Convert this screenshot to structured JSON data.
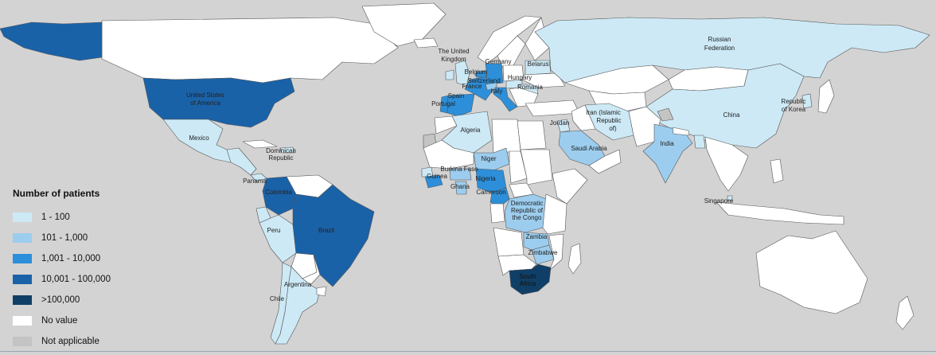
{
  "legend": {
    "title": "Number of patients",
    "items": [
      {
        "key": "c1",
        "label": "1 - 100",
        "color": "#cde9f6"
      },
      {
        "key": "c2",
        "label": "101 - 1,000",
        "color": "#9ccdee"
      },
      {
        "key": "c3",
        "label": "1,001 - 10,000",
        "color": "#2d8fd9"
      },
      {
        "key": "c4",
        "label": "10,001 - 100,000",
        "color": "#1a62a8"
      },
      {
        "key": "c5",
        "label": ">100,000",
        "color": "#0f3f66"
      },
      {
        "key": "none",
        "label": "No value",
        "color": "#ffffff"
      },
      {
        "key": "na",
        "label": "Not applicable",
        "color": "#c4c4c4"
      }
    ]
  },
  "colors": {
    "ocean": "#d3d3d3",
    "border": "#555555"
  },
  "countries": [
    {
      "name": "Canada",
      "class": "none"
    },
    {
      "name": "Greenland",
      "class": "none"
    },
    {
      "name": "Alaska",
      "class": "c4"
    },
    {
      "name": "United States of America",
      "class": "c4",
      "label": "United States of America"
    },
    {
      "name": "Mexico",
      "class": "c1",
      "label": "Mexico"
    },
    {
      "name": "Central America",
      "class": "c1"
    },
    {
      "name": "Cuba",
      "class": "none"
    },
    {
      "name": "Dominican Republic",
      "class": "c1",
      "label": "Dominican Republic"
    },
    {
      "name": "Panama",
      "class": "c1",
      "label": "Panama"
    },
    {
      "name": "Venezuela",
      "class": "none"
    },
    {
      "name": "Colombia",
      "class": "c4",
      "label": "Colombia"
    },
    {
      "name": "Ecuador",
      "class": "c1"
    },
    {
      "name": "Peru",
      "class": "c1",
      "label": "Peru"
    },
    {
      "name": "Brazil",
      "class": "c4",
      "label": "Brazil"
    },
    {
      "name": "Bolivia",
      "class": "none"
    },
    {
      "name": "Paraguay",
      "class": "none"
    },
    {
      "name": "Chile",
      "class": "c1",
      "label": "Chile"
    },
    {
      "name": "Argentina",
      "class": "c1",
      "label": "Argentina"
    },
    {
      "name": "Uruguay",
      "class": "none"
    },
    {
      "name": "Iceland",
      "class": "none"
    },
    {
      "name": "The United Kingdom",
      "class": "c1",
      "label": "The United Kingdom"
    },
    {
      "name": "Ireland",
      "class": "c1"
    },
    {
      "name": "Norway",
      "class": "none"
    },
    {
      "name": "Sweden",
      "class": "none"
    },
    {
      "name": "Finland",
      "class": "none"
    },
    {
      "name": "Portugal",
      "class": "c3",
      "label": "Portugal"
    },
    {
      "name": "Spain",
      "class": "c3",
      "label": "Spain"
    },
    {
      "name": "France",
      "class": "c3",
      "label": "France"
    },
    {
      "name": "Belgium",
      "class": "c3",
      "label": "Belgium"
    },
    {
      "name": "Germany",
      "class": "c3",
      "label": "Germany"
    },
    {
      "name": "Switzerland",
      "class": "c2",
      "label": "Switzerland"
    },
    {
      "name": "Italy",
      "class": "c3",
      "label": "Italy"
    },
    {
      "name": "Poland",
      "class": "none"
    },
    {
      "name": "Hungary",
      "class": "c1",
      "label": "Hungary"
    },
    {
      "name": "Romania",
      "class": "c1",
      "label": "Romania"
    },
    {
      "name": "Belarus",
      "class": "c1",
      "label": "Belarus"
    },
    {
      "name": "Ukraine",
      "class": "none"
    },
    {
      "name": "Balkans",
      "class": "none"
    },
    {
      "name": "Turkey",
      "class": "none"
    },
    {
      "name": "Russian Federation",
      "class": "c1",
      "label": "Russian Federation"
    },
    {
      "name": "Kazakhstan",
      "class": "none"
    },
    {
      "name": "Central Asia",
      "class": "none"
    },
    {
      "name": "Mongolia",
      "class": "none"
    },
    {
      "name": "China",
      "class": "c1",
      "label": "China"
    },
    {
      "name": "Republic of Korea",
      "class": "c1",
      "label": "Republic of Korea"
    },
    {
      "name": "Japan",
      "class": "none"
    },
    {
      "name": "Iran (Islamic Republic of)",
      "class": "c1",
      "label": "Iran (Islamic Republic of)"
    },
    {
      "name": "Iraq",
      "class": "none"
    },
    {
      "name": "Jordan",
      "class": "c1",
      "label": "Jordan"
    },
    {
      "name": "Saudi Arabia",
      "class": "c2",
      "label": "Saudi Arabia"
    },
    {
      "name": "Yemen Oman",
      "class": "none"
    },
    {
      "name": "Afghanistan Pakistan",
      "class": "none"
    },
    {
      "name": "Kashmir",
      "class": "na"
    },
    {
      "name": "India",
      "class": "c2",
      "label": "India"
    },
    {
      "name": "Nepal",
      "class": "none"
    },
    {
      "name": "Bangladesh",
      "class": "c1"
    },
    {
      "name": "Southeast Asia",
      "class": "none"
    },
    {
      "name": "Singapore",
      "class": "c1",
      "label": "Singapore"
    },
    {
      "name": "Indonesia",
      "class": "none"
    },
    {
      "name": "Philippines",
      "class": "none"
    },
    {
      "name": "Australia",
      "class": "none"
    },
    {
      "name": "New Zealand",
      "class": "none"
    },
    {
      "name": "Western Sahara",
      "class": "na"
    },
    {
      "name": "Morocco",
      "class": "none"
    },
    {
      "name": "Algeria",
      "class": "c1",
      "label": "Algeria"
    },
    {
      "name": "Libya",
      "class": "none"
    },
    {
      "name": "Egypt",
      "class": "none"
    },
    {
      "name": "Mauritania Mali",
      "class": "none"
    },
    {
      "name": "Niger",
      "class": "c2",
      "label": "Niger"
    },
    {
      "name": "Chad",
      "class": "none"
    },
    {
      "name": "Sudan",
      "class": "none"
    },
    {
      "name": "Ethiopia Horn",
      "class": "none"
    },
    {
      "name": "Senegal",
      "class": "c1"
    },
    {
      "name": "Guinea",
      "class": "c3",
      "label": "Guinea"
    },
    {
      "name": "Burkina Faso",
      "class": "c2",
      "label": "Burkina Faso"
    },
    {
      "name": "Ghana",
      "class": "c2",
      "label": "Ghana"
    },
    {
      "name": "Nigeria",
      "class": "c3",
      "label": "Nigeria"
    },
    {
      "name": "Cameroon",
      "class": "c3",
      "label": "Cameroon"
    },
    {
      "name": "Central African Republic",
      "class": "none"
    },
    {
      "name": "Gabon Congo",
      "class": "none"
    },
    {
      "name": "Democratic Republic of the Congo",
      "class": "c2",
      "label": "Democratic Republic of the Congo"
    },
    {
      "name": "East Africa",
      "class": "none"
    },
    {
      "name": "Angola",
      "class": "none"
    },
    {
      "name": "Zambia",
      "class": "c2",
      "label": "Zambia"
    },
    {
      "name": "Zimbabwe",
      "class": "c2",
      "label": "Zimbabwe"
    },
    {
      "name": "Mozambique",
      "class": "none"
    },
    {
      "name": "Namibia Botswana",
      "class": "none"
    },
    {
      "name": "South Africa",
      "class": "c5",
      "label": "South Africa"
    },
    {
      "name": "Madagascar",
      "class": "none"
    }
  ]
}
